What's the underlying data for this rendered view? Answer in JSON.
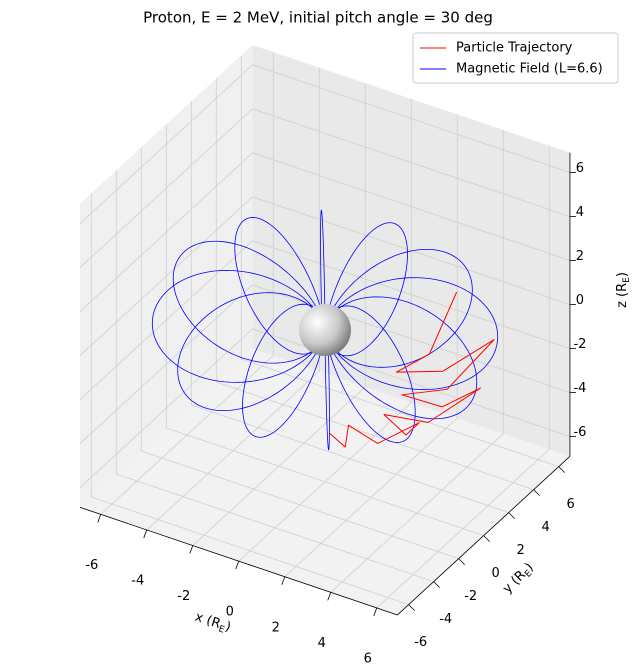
{
  "chart_data": {
    "type": "line3d",
    "title": "Proton, E = 2 MeV, initial pitch angle = 30 deg",
    "xlabel": {
      "prefix": "x (R",
      "subscript": "E",
      "suffix": ")"
    },
    "ylabel": {
      "prefix": "y (R",
      "subscript": "E",
      "suffix": ")"
    },
    "zlabel": {
      "prefix": "z (R",
      "subscript": "E",
      "suffix": ")"
    },
    "xlim": [
      -6.9,
      6.9
    ],
    "ylim": [
      -6.9,
      6.9
    ],
    "zlim": [
      -6.9,
      6.9
    ],
    "xticks": [
      -6,
      -4,
      -2,
      0,
      2,
      4,
      6
    ],
    "yticks": [
      -6,
      -4,
      -2,
      0,
      2,
      4,
      6
    ],
    "zticks": [
      -6,
      -4,
      -2,
      0,
      2,
      4,
      6
    ],
    "grid": true,
    "legend": "upper right",
    "series": [
      {
        "name": "Particle Trajectory",
        "color": "#ff0000",
        "x": [
          3.26,
          2.88,
          2.14,
          3.78,
          5.76,
          4.39,
          2.9,
          4.66,
          6.51,
          4.57,
          2.79,
          4.12,
          5.27,
          3.36,
          1.83,
          2.34,
          2.44
        ],
        "y": [
          -5.65,
          -3.68,
          -2.06,
          -2.75,
          -3.06,
          -1.6,
          -0.62,
          -0.33,
          0.46,
          0.97,
          1.02,
          2.19,
          3.83,
          3.25,
          2.34,
          4.04,
          6.04
        ],
        "z": [
          -0.57,
          -2.38,
          -2.49,
          -2.38,
          -0.57,
          -2.38,
          -2.49,
          -2.38,
          -0.57,
          -2.38,
          -2.49,
          -2.38,
          -0.57,
          -2.38,
          -2.49,
          -2.38,
          -0.57
        ]
      },
      {
        "name": "Magnetic Field (L=6.6)",
        "color": "#0000ff",
        "L": 6.6
      }
    ]
  }
}
